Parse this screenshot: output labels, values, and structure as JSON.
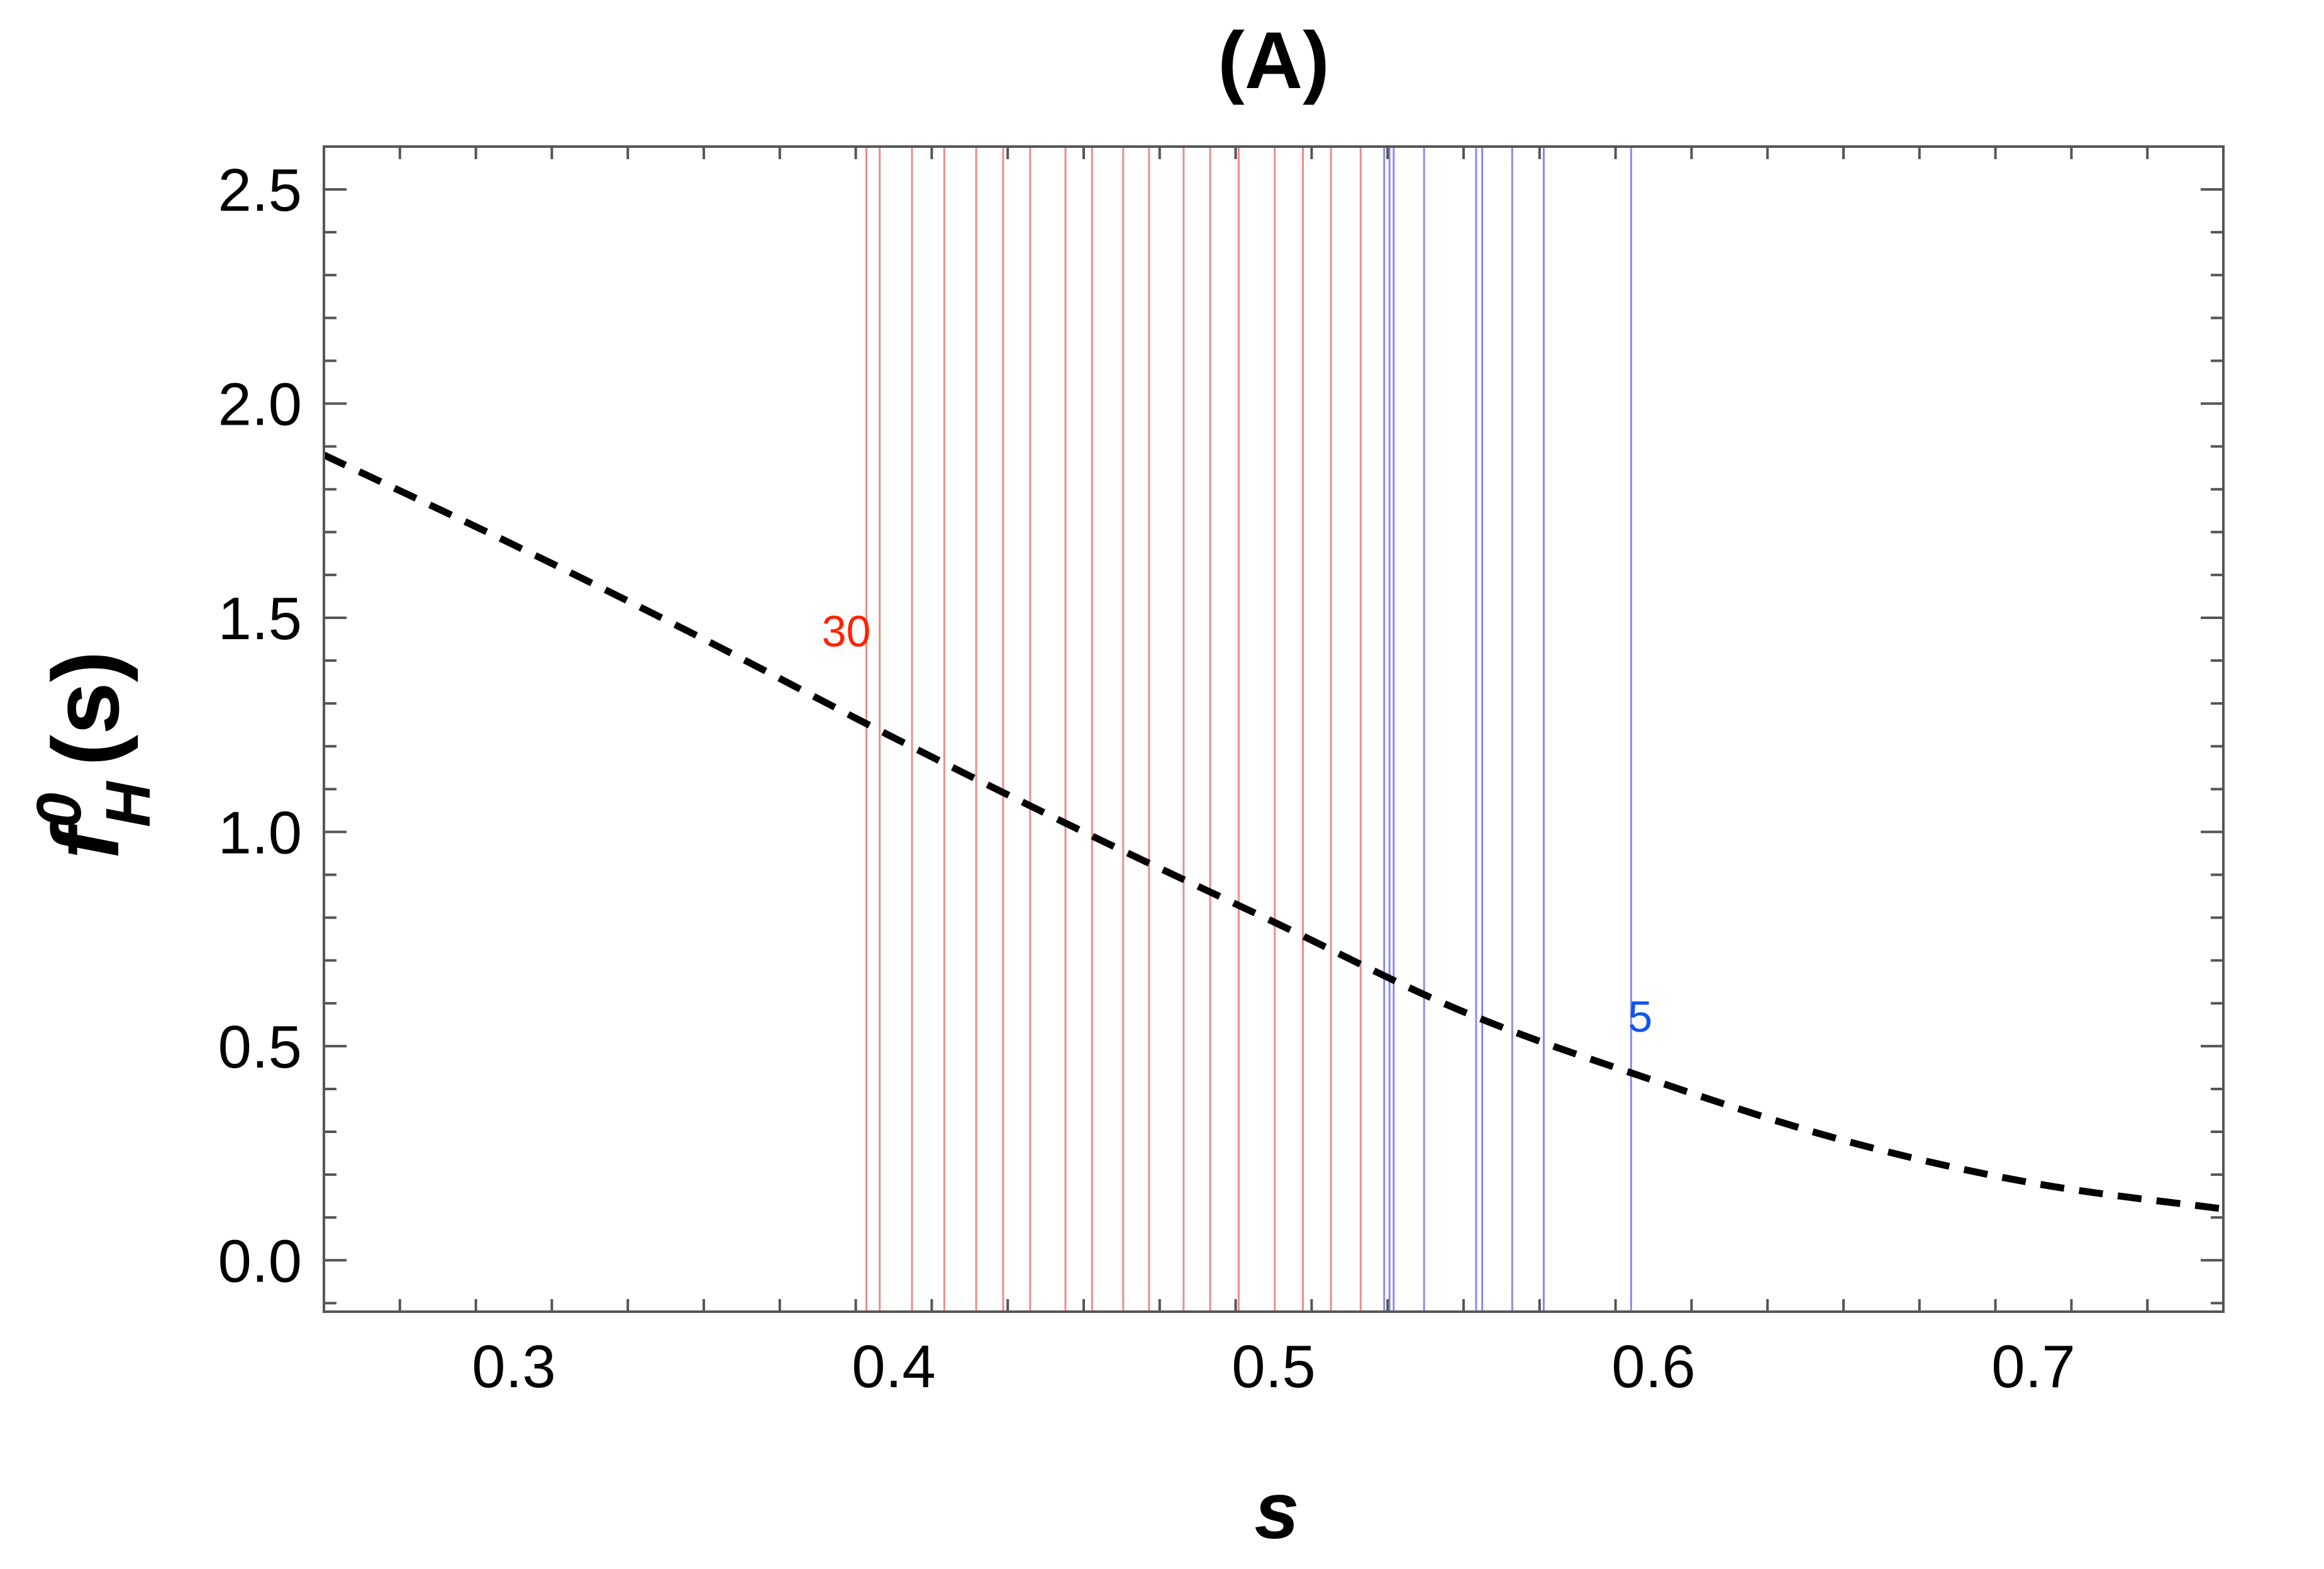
{
  "chart_data": {
    "type": "line",
    "title": "(A)",
    "xlabel": "s",
    "ylabel": {
      "base": "f",
      "superscript": "0",
      "subscript": "H",
      "argument": "(s)"
    },
    "xlim": [
      0.25,
      0.75
    ],
    "ylim": [
      -0.12,
      2.6
    ],
    "x_ticks": [
      "0.3",
      "0.4",
      "0.5",
      "0.6",
      "0.7"
    ],
    "y_ticks": [
      "0.0",
      "0.5",
      "1.0",
      "1.5",
      "2.0",
      "2.5"
    ],
    "x_tick_values": [
      0.3,
      0.4,
      0.5,
      0.6,
      0.7
    ],
    "y_tick_values": [
      0.0,
      0.5,
      1.0,
      1.5,
      2.0,
      2.5
    ],
    "grid": false,
    "series": [
      {
        "style": "dashed",
        "color": "#000000",
        "x": [
          0.25,
          0.3,
          0.35,
          0.4,
          0.45,
          0.5,
          0.55,
          0.6,
          0.65,
          0.7,
          0.75
        ],
        "y": [
          1.88,
          1.67,
          1.45,
          1.22,
          1.0,
          0.79,
          0.58,
          0.42,
          0.28,
          0.18,
          0.12
        ]
      }
    ],
    "vertical_lines": {
      "red": {
        "color": "#f08a8a",
        "x": [
          0.3928,
          0.3963,
          0.4048,
          0.4133,
          0.4217,
          0.4288,
          0.4359,
          0.4452,
          0.4522,
          0.4604,
          0.4672,
          0.4763,
          0.4833,
          0.4908,
          0.5003,
          0.5077,
          0.5151,
          0.5229
        ]
      },
      "blue": {
        "color": "#8a8af0",
        "x": [
          0.5291,
          0.5305,
          0.5316,
          0.5396,
          0.5533,
          0.5549,
          0.5628,
          0.5711,
          0.5941
        ]
      }
    },
    "annotations": [
      {
        "text": "30",
        "x": 0.3875,
        "y": 1.47,
        "color": "#ff2200"
      },
      {
        "text": "5",
        "x": 0.5965,
        "y": 0.57,
        "color": "#1155ee"
      }
    ]
  }
}
